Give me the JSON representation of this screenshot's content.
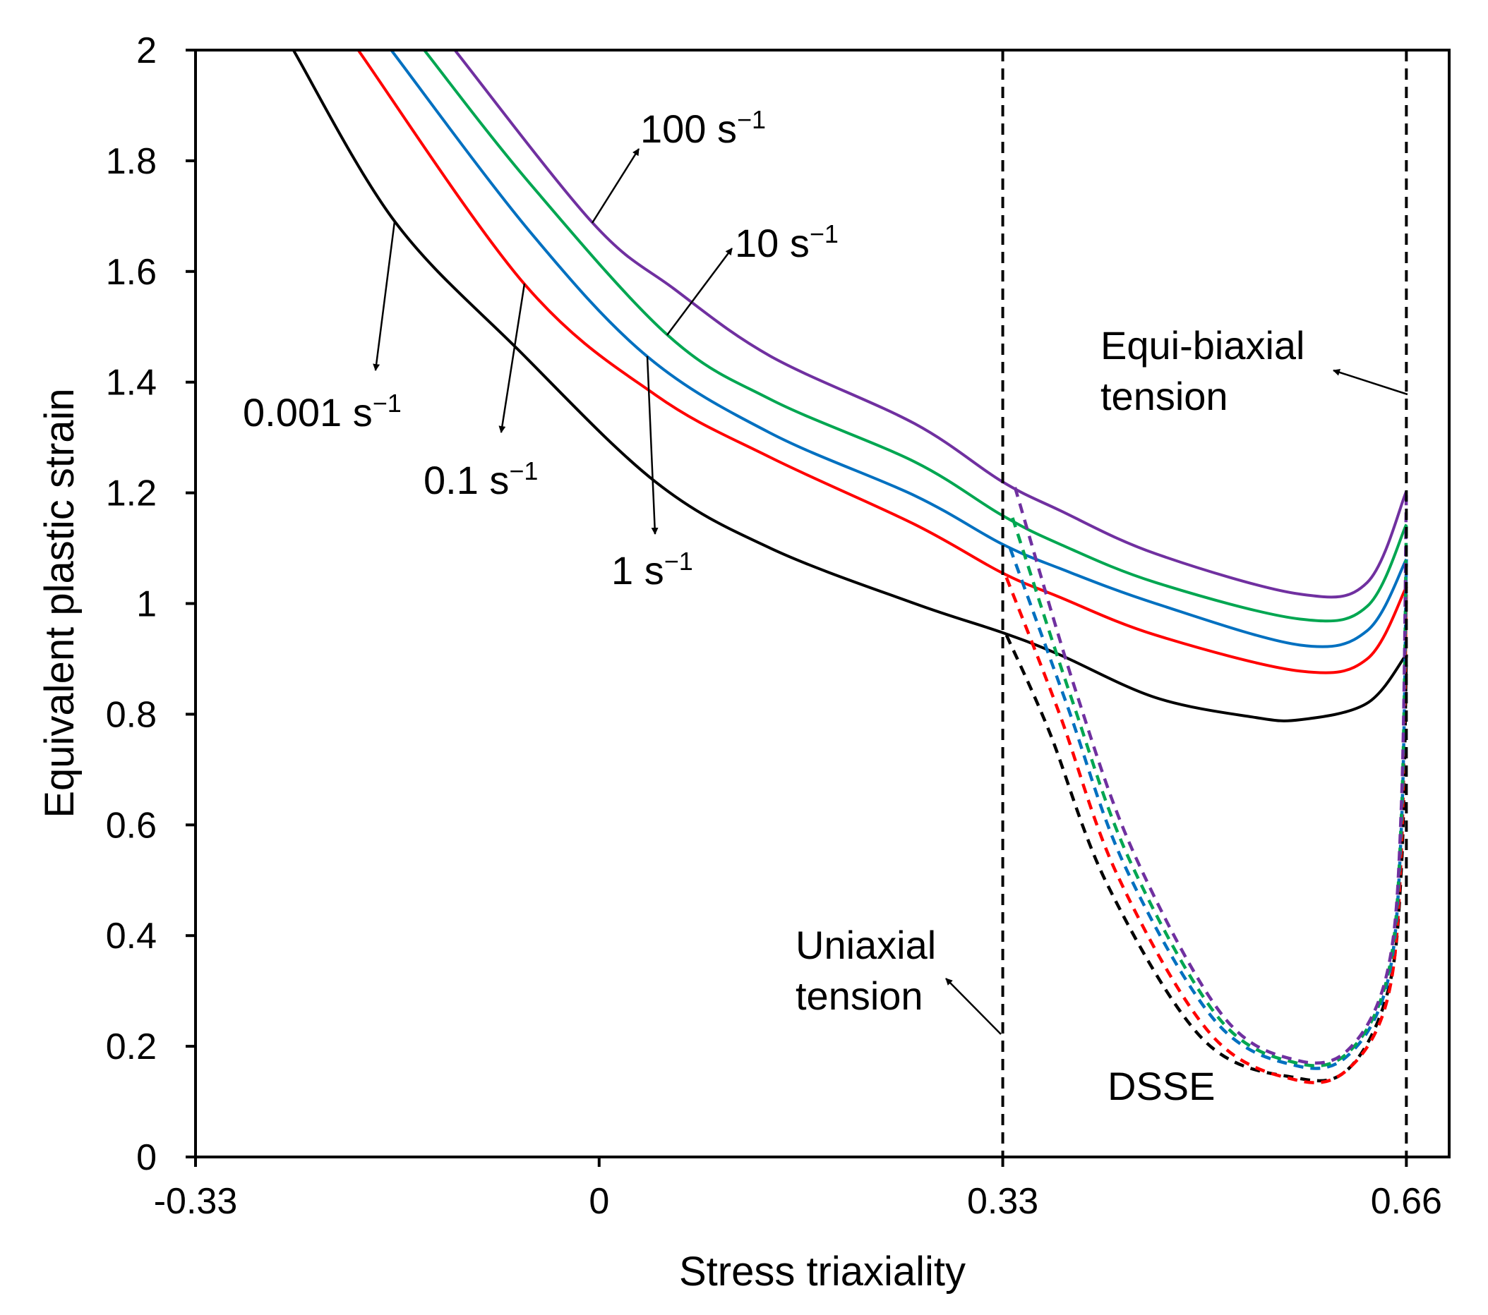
{
  "chart_data": {
    "type": "line",
    "title": "",
    "xlabel": "Stress triaxiality",
    "ylabel": "Equivalent plastic strain",
    "xlim": [
      -0.33,
      0.695
    ],
    "ylim": [
      0,
      2
    ],
    "xticks": [
      -0.33,
      0,
      0.33,
      0.66
    ],
    "xtick_labels": [
      "-0.33",
      "0",
      "0.33",
      "0.66"
    ],
    "yticks": [
      0,
      0.2,
      0.4,
      0.6,
      0.8,
      1,
      1.2,
      1.4,
      1.6,
      1.8,
      2
    ],
    "ytick_labels": [
      "0",
      "0.2",
      "0.4",
      "0.6",
      "0.8",
      "1",
      "1.2",
      "1.4",
      "1.6",
      "1.8",
      "2"
    ],
    "grid": false,
    "vertical_reference_lines": [
      0.33,
      0.66
    ],
    "series": [
      {
        "name": "0.001 s-1",
        "style": "solid",
        "color": "#000000",
        "x": [
          -0.25,
          -0.167,
          -0.065,
          0.046,
          0.14,
          0.258,
          0.329,
          0.376,
          0.455,
          0.534,
          0.573,
          0.628,
          0.66
        ],
        "y": [
          2.0,
          1.69,
          1.456,
          1.22,
          1.1,
          1.0,
          0.948,
          0.908,
          0.83,
          0.795,
          0.79,
          0.82,
          0.908
        ]
      },
      {
        "name": "0.1 s-1",
        "style": "solid",
        "color": "#ff0000",
        "x": [
          -0.197,
          -0.061,
          0.046,
          0.14,
          0.258,
          0.329,
          0.376,
          0.455,
          0.573,
          0.628,
          0.66
        ],
        "y": [
          2.0,
          1.577,
          1.377,
          1.264,
          1.143,
          1.056,
          1.012,
          0.943,
          0.878,
          0.9,
          1.03
        ]
      },
      {
        "name": "1 s-1",
        "style": "solid",
        "color": "#0070c0",
        "x": [
          -0.17,
          -0.057,
          0.039,
          0.14,
          0.258,
          0.329,
          0.376,
          0.455,
          0.573,
          0.628,
          0.66
        ],
        "y": [
          2.0,
          1.673,
          1.447,
          1.308,
          1.195,
          1.108,
          1.064,
          1.0,
          0.925,
          0.951,
          1.08
        ]
      },
      {
        "name": "10 s-1",
        "style": "solid",
        "color": "#00a651",
        "x": [
          -0.143,
          -0.057,
          0.056,
          0.14,
          0.258,
          0.329,
          0.376,
          0.455,
          0.573,
          0.628,
          0.66
        ],
        "y": [
          2.0,
          1.76,
          1.485,
          1.369,
          1.256,
          1.16,
          1.108,
          1.038,
          0.972,
          0.995,
          1.143
        ]
      },
      {
        "name": "100 s-1",
        "style": "solid",
        "color": "#7030a0",
        "x": [
          -0.118,
          -0.005,
          0.061,
          0.14,
          0.258,
          0.329,
          0.376,
          0.455,
          0.573,
          0.628,
          0.66
        ],
        "y": [
          2.0,
          1.687,
          1.569,
          1.447,
          1.325,
          1.221,
          1.169,
          1.09,
          1.017,
          1.038,
          1.203
        ]
      },
      {
        "name": "DSSE 0.001 s-1",
        "style": "dashed",
        "color": "#000000",
        "x": [
          0.333,
          0.368,
          0.416,
          0.494,
          0.57,
          0.613,
          0.645,
          0.656,
          0.66
        ],
        "y": [
          0.943,
          0.769,
          0.49,
          0.212,
          0.143,
          0.16,
          0.3,
          0.525,
          0.908
        ]
      },
      {
        "name": "DSSE 0.1 s-1",
        "style": "dashed",
        "color": "#ff0000",
        "x": [
          0.333,
          0.376,
          0.424,
          0.5,
          0.57,
          0.613,
          0.645,
          0.656,
          0.66
        ],
        "y": [
          1.047,
          0.803,
          0.508,
          0.222,
          0.139,
          0.16,
          0.29,
          0.56,
          1.03
        ]
      },
      {
        "name": "DSSE 1 s-1",
        "style": "dashed",
        "color": "#0070c0",
        "x": [
          0.336,
          0.382,
          0.43,
          0.504,
          0.57,
          0.613,
          0.645,
          0.656,
          0.66
        ],
        "y": [
          1.1,
          0.82,
          0.525,
          0.245,
          0.165,
          0.185,
          0.32,
          0.6,
          1.08
        ]
      },
      {
        "name": "DSSE 10 s-1",
        "style": "dashed",
        "color": "#00a651",
        "x": [
          0.338,
          0.386,
          0.434,
          0.507,
          0.57,
          0.613,
          0.645,
          0.656,
          0.66
        ],
        "y": [
          1.155,
          0.83,
          0.535,
          0.25,
          0.17,
          0.19,
          0.33,
          0.62,
          1.143
        ]
      },
      {
        "name": "DSSE 100 s-1",
        "style": "dashed",
        "color": "#7030a0",
        "x": [
          0.34,
          0.39,
          0.438,
          0.51,
          0.57,
          0.613,
          0.645,
          0.656,
          0.66
        ],
        "y": [
          1.21,
          0.84,
          0.545,
          0.255,
          0.175,
          0.195,
          0.34,
          0.64,
          1.203
        ]
      }
    ],
    "annotations": {
      "r100": {
        "base": "100 s",
        "sup": "−1"
      },
      "r10": {
        "base": "10 s",
        "sup": "−1"
      },
      "r0001": {
        "base": "0.001 s",
        "sup": "−1"
      },
      "r01": {
        "base": "0.1 s",
        "sup": "−1"
      },
      "r1": {
        "base": "1 s",
        "sup": "−1"
      },
      "equi_line1": "Equi-biaxial",
      "equi_line2": "tension",
      "uni_line1": "Uniaxial",
      "uni_line2": "tension",
      "dsse": "DSSE"
    }
  }
}
